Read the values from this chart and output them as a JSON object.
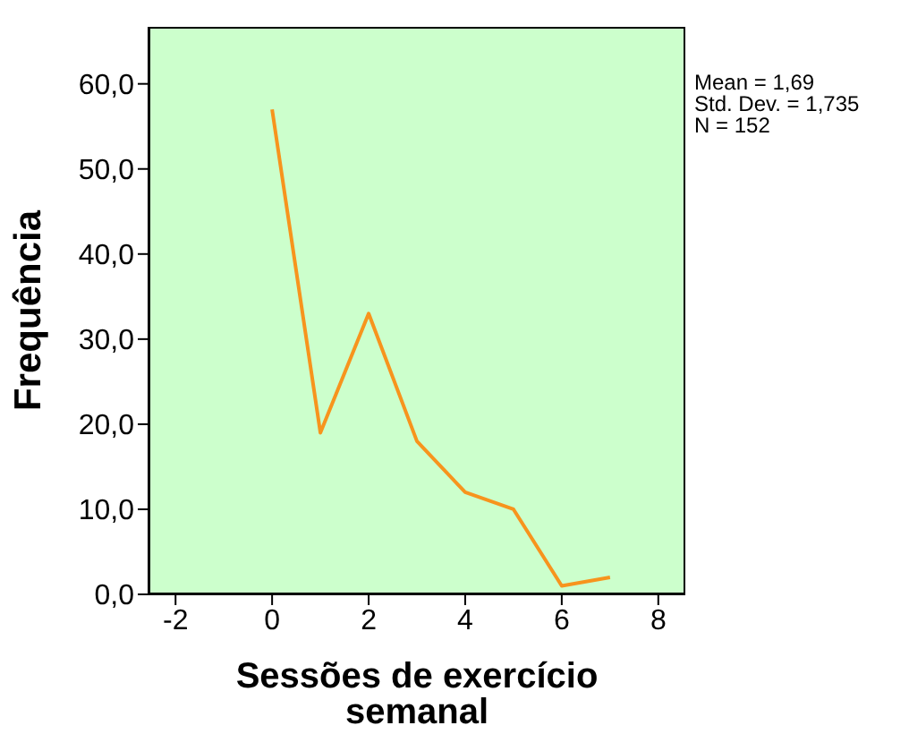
{
  "chart_data": {
    "type": "line",
    "xlabel": "Sessões de exercício semanal",
    "ylabel": "Frequência",
    "annotations": [
      "Mean = 1,69",
      "Std. Dev. = 1,735",
      "N = 152"
    ],
    "x": [
      0,
      1,
      2,
      3,
      4,
      5,
      6,
      7
    ],
    "values": [
      57,
      19,
      33,
      18,
      12,
      10,
      1,
      2
    ],
    "color": "#f7941d",
    "xlim": [
      -2.56,
      8.56
    ],
    "xticks": [
      -2,
      0,
      2,
      4,
      6,
      8
    ],
    "ylim": [
      0,
      66.7
    ],
    "yticks": [
      {
        "value": 0,
        "label": "0,0"
      },
      {
        "value": 10,
        "label": "10,0"
      },
      {
        "value": 20,
        "label": "20,0"
      },
      {
        "value": 30,
        "label": "30,0"
      },
      {
        "value": 40,
        "label": "40,0"
      },
      {
        "value": 50,
        "label": "50,0"
      },
      {
        "value": 60,
        "label": "60,0"
      }
    ],
    "grid": false
  }
}
